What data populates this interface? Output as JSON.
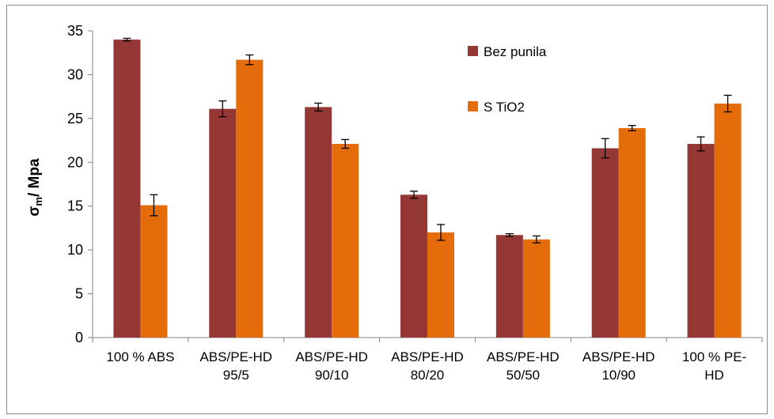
{
  "chart_data": {
    "type": "bar",
    "title": "",
    "xlabel": "",
    "ylabel_main": "σ",
    "ylabel_sub": "m",
    "ylabel_rest": "/ Mpa",
    "ylim": [
      0,
      35
    ],
    "yticks": [
      0,
      5,
      10,
      15,
      20,
      25,
      30,
      35
    ],
    "grid": false,
    "legend_position": "top-right",
    "categories": [
      [
        "100 % ABS"
      ],
      [
        "ABS/PE-HD",
        "95/5"
      ],
      [
        "ABS/PE-HD",
        "90/10"
      ],
      [
        "ABS/PE-HD",
        "80/20"
      ],
      [
        "ABS/PE-HD",
        "50/50"
      ],
      [
        "ABS/PE-HD",
        "10/90"
      ],
      [
        "100 % PE-",
        "HD"
      ]
    ],
    "series": [
      {
        "name": "Bez punila",
        "color": "#953735",
        "values": [
          34.0,
          26.1,
          26.3,
          16.3,
          11.7,
          21.6,
          22.1
        ],
        "errors": [
          0.15,
          0.9,
          0.45,
          0.4,
          0.15,
          1.1,
          0.8
        ]
      },
      {
        "name": "S TiO2",
        "color": "#E46C0A",
        "values": [
          15.1,
          31.7,
          22.1,
          12.0,
          11.2,
          23.9,
          26.7
        ],
        "errors": [
          1.2,
          0.55,
          0.5,
          0.9,
          0.4,
          0.3,
          0.95
        ]
      }
    ]
  }
}
